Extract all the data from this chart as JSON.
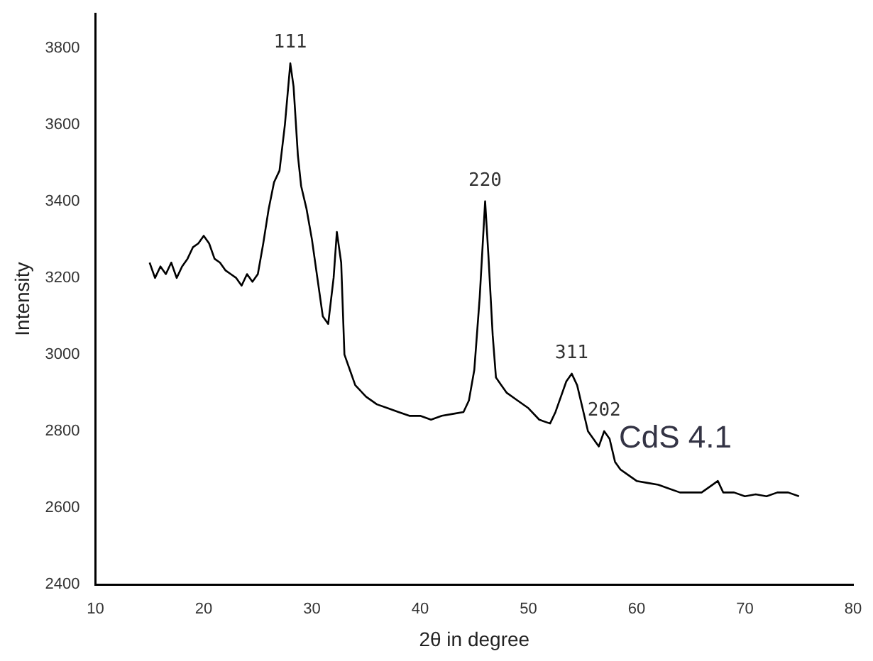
{
  "chart_data": {
    "type": "line",
    "xlabel": "2θ in degree",
    "ylabel": "Intensity",
    "x": [
      15,
      15.5,
      16,
      16.5,
      17,
      17.5,
      18,
      18.5,
      19,
      19.5,
      20,
      20.5,
      21,
      21.5,
      22,
      22.5,
      23,
      23.5,
      24,
      24.5,
      25,
      25.5,
      26,
      26.5,
      27,
      27.5,
      28,
      28.3,
      28.7,
      29,
      29.5,
      30,
      30.5,
      31,
      31.5,
      32,
      32.3,
      32.7,
      33,
      33.5,
      34,
      35,
      36,
      37,
      38,
      39,
      40,
      41,
      42,
      43,
      44,
      44.5,
      45,
      45.5,
      45.8,
      46,
      46.3,
      46.7,
      47,
      47.5,
      48,
      49,
      50,
      51,
      52,
      52.5,
      53,
      53.5,
      54,
      54.5,
      55,
      55.5,
      56,
      56.5,
      57,
      57.5,
      58,
      58.5,
      59,
      60,
      61,
      62,
      63,
      64,
      65,
      66,
      67,
      67.5,
      68,
      69,
      70,
      71,
      72,
      73,
      74,
      75
    ],
    "series": [
      {
        "color": "#000000",
        "values": [
          3240,
          3200,
          3230,
          3210,
          3240,
          3200,
          3230,
          3250,
          3280,
          3290,
          3310,
          3290,
          3250,
          3240,
          3220,
          3210,
          3200,
          3180,
          3210,
          3190,
          3210,
          3290,
          3380,
          3450,
          3480,
          3600,
          3760,
          3700,
          3520,
          3440,
          3380,
          3300,
          3200,
          3100,
          3080,
          3200,
          3320,
          3240,
          3000,
          2960,
          2920,
          2890,
          2870,
          2860,
          2850,
          2840,
          2840,
          2830,
          2840,
          2845,
          2850,
          2880,
          2960,
          3150,
          3300,
          3400,
          3260,
          3050,
          2940,
          2920,
          2900,
          2880,
          2860,
          2830,
          2820,
          2850,
          2890,
          2930,
          2950,
          2920,
          2860,
          2800,
          2780,
          2760,
          2800,
          2780,
          2720,
          2700,
          2690,
          2670,
          2665,
          2660,
          2650,
          2640,
          2640,
          2640,
          2660,
          2670,
          2640,
          2640,
          2630,
          2635,
          2630,
          2640,
          2640,
          2630
        ]
      }
    ],
    "xlim": [
      10,
      80
    ],
    "xticks": [
      10,
      20,
      30,
      40,
      50,
      60,
      70,
      80
    ],
    "ylim": [
      2400,
      3890
    ],
    "yticks": [
      2400,
      2600,
      2800,
      3000,
      3200,
      3400,
      3600,
      3800
    ],
    "annotations": [
      {
        "text": "111",
        "x": 28,
        "y": 3760
      },
      {
        "text": "220",
        "x": 46,
        "y": 3400
      },
      {
        "text": "311",
        "x": 54,
        "y": 2950
      },
      {
        "text": "202",
        "x": 57,
        "y": 2800
      },
      "CdS 4.1"
    ],
    "grid": false,
    "legend": false,
    "marker": "none",
    "line_style": "solid"
  }
}
